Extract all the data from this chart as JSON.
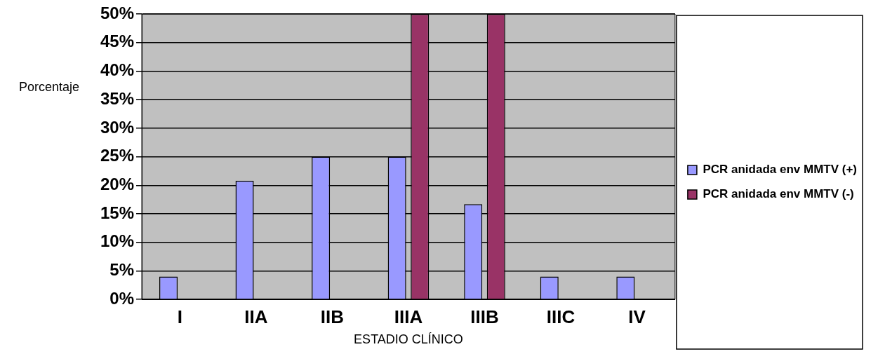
{
  "chart_data": {
    "type": "bar",
    "xlabel": "ESTADIO CLÍNICO",
    "ylabel": "Porcentaje",
    "categories": [
      "I",
      "IIA",
      "IIB",
      "IIIA",
      "IIIB",
      "IIIC",
      "IV"
    ],
    "series": [
      {
        "name": "PCR anidada env MMTV (+)",
        "color": "#9999ff",
        "values": [
          4,
          20.8,
          25,
          25,
          16.7,
          4,
          4
        ]
      },
      {
        "name": "PCR anidada env MMTV (-)",
        "color": "#993366",
        "values": [
          0,
          0,
          0,
          50,
          50,
          0,
          0
        ]
      }
    ],
    "ylim": [
      0,
      50
    ],
    "yticks": [
      {
        "value": 0,
        "label": "0%"
      },
      {
        "value": 5,
        "label": "5%"
      },
      {
        "value": 10,
        "label": "10%"
      },
      {
        "value": 15,
        "label": "15%"
      },
      {
        "value": 20,
        "label": "20%"
      },
      {
        "value": 25,
        "label": "25%"
      },
      {
        "value": 30,
        "label": "30%"
      },
      {
        "value": 35,
        "label": "35%"
      },
      {
        "value": 40,
        "label": "40%"
      },
      {
        "value": 45,
        "label": "45%"
      },
      {
        "value": 50,
        "label": "50%"
      }
    ],
    "grid": "y",
    "legend": "right"
  }
}
